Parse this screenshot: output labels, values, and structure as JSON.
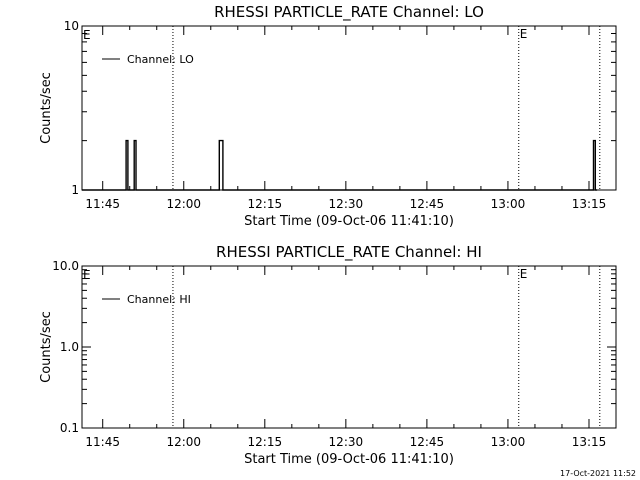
{
  "footer_timestamp": "17-Oct-2021 11:52",
  "chart_data": [
    {
      "type": "line",
      "title": "RHESSI PARTICLE_RATE Channel: LO",
      "xlabel": "Start Time (09-Oct-06 11:41:10)",
      "ylabel": "Counts/sec",
      "y_scale": "log",
      "ylim": [
        1,
        10
      ],
      "y_ticks": [
        {
          "value": 1,
          "label": "1"
        },
        {
          "value": 10,
          "label": "10"
        }
      ],
      "xlim": [
        "11:41:10",
        "13:20:00"
      ],
      "x_ticks": [
        "11:45",
        "12:00",
        "12:15",
        "12:30",
        "12:45",
        "13:00",
        "13:15"
      ],
      "legend": {
        "position": "top-left",
        "label": "Channel: LO"
      },
      "vertical_markers": [
        {
          "time": "11:58:00",
          "style": "dotted"
        },
        {
          "time": "13:02:00",
          "style": "dotted",
          "label": "E"
        },
        {
          "time": "13:17:00",
          "style": "dotted"
        }
      ],
      "corner_marker": "E",
      "series": [
        {
          "name": "Channel: LO",
          "points": [
            [
              "11:41:10",
              1
            ],
            [
              "11:49:00",
              1
            ],
            [
              "11:49:20",
              2
            ],
            [
              "11:49:40",
              1
            ],
            [
              "11:50:30",
              1
            ],
            [
              "11:50:50",
              2
            ],
            [
              "11:51:10",
              1
            ],
            [
              "12:06:20",
              1
            ],
            [
              "12:06:35",
              2
            ],
            [
              "12:07:00",
              2
            ],
            [
              "12:07:15",
              1
            ],
            [
              "13:15:30",
              1
            ],
            [
              "13:15:50",
              2
            ],
            [
              "13:16:10",
              1
            ],
            [
              "13:16:30",
              1
            ]
          ]
        }
      ]
    },
    {
      "type": "line",
      "title": "RHESSI PARTICLE_RATE Channel: HI",
      "xlabel": "Start Time (09-Oct-06 11:41:10)",
      "ylabel": "Counts/sec",
      "y_scale": "log",
      "ylim": [
        0.1,
        10
      ],
      "y_ticks": [
        {
          "value": 0.1,
          "label": "0.1"
        },
        {
          "value": 1,
          "label": "1.0"
        },
        {
          "value": 10,
          "label": "10.0"
        }
      ],
      "xlim": [
        "11:41:10",
        "13:20:00"
      ],
      "x_ticks": [
        "11:45",
        "12:00",
        "12:15",
        "12:30",
        "12:45",
        "13:00",
        "13:15"
      ],
      "legend": {
        "position": "top-left",
        "label": "Channel: HI"
      },
      "vertical_markers": [
        {
          "time": "11:58:00",
          "style": "dotted"
        },
        {
          "time": "13:02:00",
          "style": "dotted",
          "label": "E"
        },
        {
          "time": "13:17:00",
          "style": "dotted"
        }
      ],
      "corner_marker": "E",
      "series": [
        {
          "name": "Channel: HI",
          "points": []
        }
      ]
    }
  ]
}
